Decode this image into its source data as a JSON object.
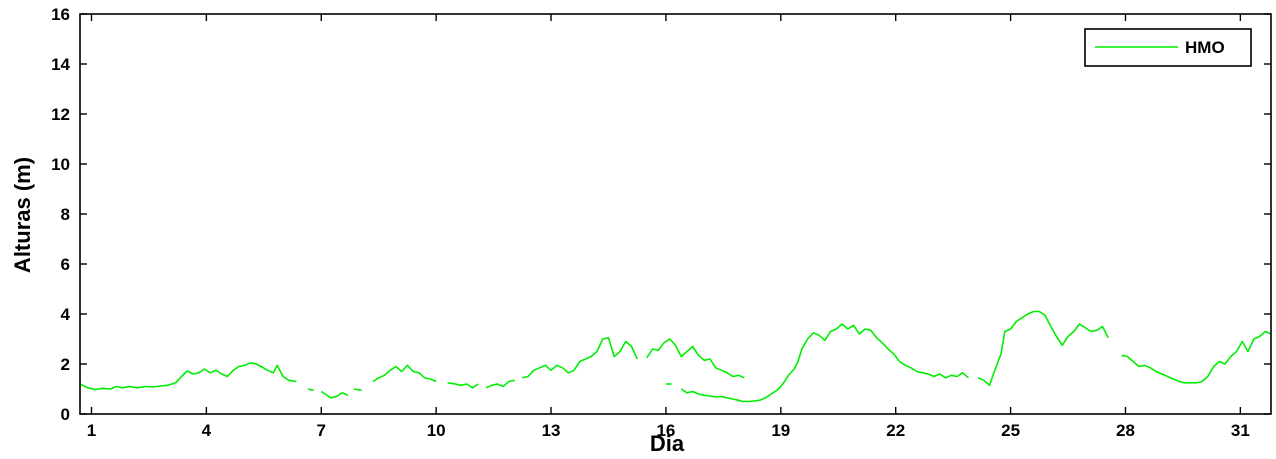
{
  "chart_data": {
    "type": "line",
    "title": "",
    "xlabel": "Dia",
    "ylabel": "Alturas (m)",
    "xlim": [
      0.7,
      31.8
    ],
    "ylim": [
      0,
      16
    ],
    "x_ticks": [
      1,
      4,
      7,
      10,
      13,
      16,
      19,
      22,
      25,
      28,
      31
    ],
    "y_ticks": [
      0,
      2,
      4,
      6,
      8,
      10,
      12,
      14,
      16
    ],
    "grid": false,
    "legend_position": "top-right",
    "series_color": "#00ee00",
    "series": [
      {
        "name": "HMO",
        "segments": [
          [
            [
              0.7,
              1.2
            ],
            [
              0.9,
              1.05
            ],
            [
              1.1,
              0.98
            ],
            [
              1.3,
              1.03
            ],
            [
              1.5,
              1.0
            ],
            [
              1.65,
              1.1
            ],
            [
              1.8,
              1.05
            ],
            [
              2.0,
              1.1
            ],
            [
              2.2,
              1.05
            ],
            [
              2.4,
              1.1
            ],
            [
              2.6,
              1.08
            ],
            [
              2.8,
              1.12
            ],
            [
              3.0,
              1.15
            ],
            [
              3.2,
              1.25
            ],
            [
              3.35,
              1.5
            ],
            [
              3.5,
              1.72
            ],
            [
              3.65,
              1.6
            ],
            [
              3.8,
              1.65
            ],
            [
              3.95,
              1.8
            ],
            [
              4.1,
              1.65
            ],
            [
              4.25,
              1.75
            ],
            [
              4.4,
              1.6
            ],
            [
              4.55,
              1.5
            ],
            [
              4.7,
              1.75
            ],
            [
              4.85,
              1.9
            ],
            [
              5.0,
              1.95
            ],
            [
              5.15,
              2.05
            ],
            [
              5.3,
              2.0
            ],
            [
              5.45,
              1.88
            ],
            [
              5.6,
              1.75
            ],
            [
              5.75,
              1.65
            ],
            [
              5.85,
              1.95
            ],
            [
              6.0,
              1.5
            ],
            [
              6.15,
              1.35
            ],
            [
              6.35,
              1.3
            ]
          ],
          [
            [
              6.65,
              1.0
            ],
            [
              6.8,
              0.95
            ]
          ],
          [
            [
              7.0,
              0.9
            ],
            [
              7.1,
              0.8
            ],
            [
              7.25,
              0.65
            ],
            [
              7.4,
              0.7
            ],
            [
              7.55,
              0.85
            ],
            [
              7.7,
              0.75
            ]
          ],
          [
            [
              7.85,
              1.0
            ],
            [
              8.05,
              0.95
            ]
          ],
          [
            [
              8.35,
              1.3
            ],
            [
              8.5,
              1.45
            ],
            [
              8.65,
              1.55
            ],
            [
              8.8,
              1.75
            ],
            [
              8.95,
              1.9
            ],
            [
              9.1,
              1.7
            ],
            [
              9.25,
              1.95
            ],
            [
              9.4,
              1.7
            ],
            [
              9.55,
              1.65
            ],
            [
              9.7,
              1.45
            ],
            [
              9.85,
              1.4
            ],
            [
              10.0,
              1.3
            ]
          ],
          [
            [
              10.3,
              1.25
            ],
            [
              10.5,
              1.2
            ],
            [
              10.65,
              1.15
            ],
            [
              10.8,
              1.2
            ],
            [
              10.95,
              1.05
            ],
            [
              11.1,
              1.2
            ]
          ],
          [
            [
              11.3,
              1.05
            ],
            [
              11.45,
              1.15
            ],
            [
              11.6,
              1.2
            ],
            [
              11.75,
              1.1
            ],
            [
              11.9,
              1.3
            ],
            [
              12.05,
              1.35
            ]
          ],
          [
            [
              12.25,
              1.45
            ],
            [
              12.4,
              1.5
            ],
            [
              12.55,
              1.75
            ],
            [
              12.7,
              1.85
            ],
            [
              12.85,
              1.95
            ],
            [
              13.0,
              1.75
            ],
            [
              13.15,
              1.95
            ],
            [
              13.3,
              1.85
            ],
            [
              13.45,
              1.65
            ],
            [
              13.6,
              1.75
            ],
            [
              13.75,
              2.1
            ],
            [
              13.9,
              2.2
            ],
            [
              14.05,
              2.3
            ],
            [
              14.2,
              2.5
            ],
            [
              14.35,
              3.0
            ],
            [
              14.5,
              3.05
            ],
            [
              14.65,
              2.3
            ],
            [
              14.8,
              2.5
            ],
            [
              14.95,
              2.9
            ],
            [
              15.1,
              2.7
            ],
            [
              15.25,
              2.2
            ]
          ],
          [
            [
              15.5,
              2.25
            ],
            [
              15.65,
              2.6
            ],
            [
              15.8,
              2.55
            ],
            [
              15.95,
              2.85
            ],
            [
              16.1,
              3.0
            ],
            [
              16.25,
              2.75
            ],
            [
              16.4,
              2.3
            ],
            [
              16.55,
              2.5
            ],
            [
              16.7,
              2.7
            ],
            [
              16.85,
              2.35
            ],
            [
              17.0,
              2.15
            ],
            [
              17.15,
              2.2
            ],
            [
              17.3,
              1.85
            ],
            [
              17.45,
              1.75
            ],
            [
              17.6,
              1.65
            ],
            [
              17.75,
              1.5
            ],
            [
              17.9,
              1.55
            ],
            [
              18.05,
              1.45
            ]
          ],
          [
            [
              16.0,
              1.2
            ],
            [
              16.15,
              1.2
            ]
          ],
          [
            [
              16.4,
              1.0
            ],
            [
              16.55,
              0.85
            ],
            [
              16.7,
              0.9
            ],
            [
              16.85,
              0.8
            ],
            [
              17.0,
              0.75
            ],
            [
              17.15,
              0.72
            ],
            [
              17.3,
              0.68
            ],
            [
              17.45,
              0.7
            ],
            [
              17.6,
              0.65
            ],
            [
              17.75,
              0.6
            ],
            [
              17.9,
              0.55
            ],
            [
              18.0,
              0.5
            ],
            [
              18.15,
              0.5
            ],
            [
              18.3,
              0.52
            ],
            [
              18.45,
              0.55
            ],
            [
              18.6,
              0.65
            ],
            [
              18.75,
              0.8
            ],
            [
              18.9,
              0.95
            ],
            [
              19.0,
              1.1
            ],
            [
              19.1,
              1.3
            ],
            [
              19.2,
              1.55
            ],
            [
              19.35,
              1.8
            ],
            [
              19.45,
              2.1
            ],
            [
              19.55,
              2.6
            ],
            [
              19.7,
              3.0
            ],
            [
              19.85,
              3.25
            ],
            [
              20.0,
              3.15
            ],
            [
              20.15,
              2.95
            ],
            [
              20.3,
              3.3
            ],
            [
              20.45,
              3.4
            ],
            [
              20.6,
              3.6
            ],
            [
              20.75,
              3.4
            ],
            [
              20.9,
              3.55
            ],
            [
              21.05,
              3.2
            ],
            [
              21.2,
              3.4
            ],
            [
              21.35,
              3.35
            ],
            [
              21.5,
              3.05
            ],
            [
              21.65,
              2.85
            ],
            [
              21.8,
              2.6
            ],
            [
              21.95,
              2.4
            ],
            [
              22.1,
              2.1
            ],
            [
              22.25,
              1.95
            ],
            [
              22.4,
              1.85
            ],
            [
              22.55,
              1.7
            ],
            [
              22.7,
              1.65
            ],
            [
              22.85,
              1.6
            ],
            [
              23.0,
              1.5
            ],
            [
              23.15,
              1.6
            ],
            [
              23.3,
              1.45
            ],
            [
              23.45,
              1.55
            ],
            [
              23.6,
              1.5
            ],
            [
              23.75,
              1.65
            ],
            [
              23.9,
              1.45
            ]
          ],
          [
            [
              24.15,
              1.45
            ],
            [
              24.3,
              1.35
            ],
            [
              24.45,
              1.15
            ],
            [
              24.6,
              1.8
            ],
            [
              24.75,
              2.4
            ],
            [
              24.85,
              3.3
            ],
            [
              25.0,
              3.4
            ],
            [
              25.15,
              3.7
            ],
            [
              25.3,
              3.85
            ],
            [
              25.45,
              4.0
            ],
            [
              25.6,
              4.1
            ],
            [
              25.75,
              4.1
            ],
            [
              25.9,
              3.95
            ],
            [
              26.05,
              3.5
            ],
            [
              26.2,
              3.1
            ],
            [
              26.35,
              2.75
            ],
            [
              26.5,
              3.1
            ],
            [
              26.65,
              3.3
            ],
            [
              26.8,
              3.6
            ],
            [
              26.95,
              3.45
            ],
            [
              27.1,
              3.3
            ],
            [
              27.25,
              3.35
            ],
            [
              27.4,
              3.5
            ],
            [
              27.55,
              3.05
            ]
          ],
          [
            [
              27.9,
              2.35
            ],
            [
              28.05,
              2.3
            ],
            [
              28.2,
              2.1
            ],
            [
              28.35,
              1.9
            ],
            [
              28.5,
              1.95
            ],
            [
              28.65,
              1.85
            ],
            [
              28.8,
              1.7
            ],
            [
              28.95,
              1.6
            ],
            [
              29.1,
              1.5
            ],
            [
              29.25,
              1.4
            ],
            [
              29.4,
              1.3
            ],
            [
              29.55,
              1.25
            ],
            [
              29.7,
              1.25
            ],
            [
              29.85,
              1.25
            ],
            [
              30.0,
              1.3
            ],
            [
              30.15,
              1.5
            ],
            [
              30.3,
              1.9
            ],
            [
              30.45,
              2.1
            ],
            [
              30.6,
              2.0
            ],
            [
              30.75,
              2.3
            ],
            [
              30.9,
              2.5
            ],
            [
              31.05,
              2.9
            ],
            [
              31.2,
              2.5
            ],
            [
              31.35,
              3.0
            ],
            [
              31.5,
              3.1
            ],
            [
              31.65,
              3.3
            ],
            [
              31.8,
              3.2
            ]
          ]
        ]
      }
    ]
  }
}
